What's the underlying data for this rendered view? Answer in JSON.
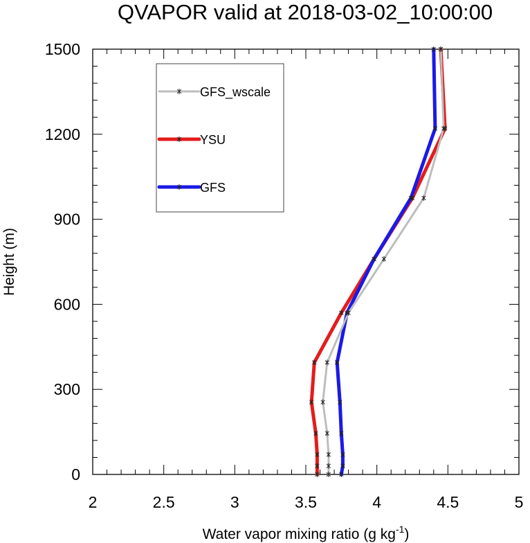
{
  "chart_data": {
    "type": "line",
    "title": "QVAPOR valid at 2018-03-02_10:00:00",
    "xlabel": "Water vapor mixing ratio (g kg",
    "xlabel_sup": "-1",
    "xlabel_end": ")",
    "ylabel": "Height (m)",
    "xlim": [
      2,
      5
    ],
    "ylim": [
      0,
      1500
    ],
    "xticks": [
      "2",
      "2.5",
      "3",
      "3.5",
      "4",
      "4.5",
      "5"
    ],
    "yticks": [
      "0",
      "300",
      "600",
      "900",
      "1200",
      "1500"
    ],
    "legend_position": "top-left",
    "series": [
      {
        "name": "GFS_wscale",
        "color": "#bdbdbd",
        "x": [
          3.66,
          3.66,
          3.66,
          3.65,
          3.62,
          3.65,
          3.8,
          4.05,
          4.33,
          4.47,
          4.45
        ],
        "y": [
          0,
          30,
          70,
          145,
          255,
          395,
          570,
          760,
          975,
          1220,
          1500
        ]
      },
      {
        "name": "YSU",
        "color": "#e51c1c",
        "x": [
          3.58,
          3.58,
          3.58,
          3.57,
          3.54,
          3.56,
          3.75,
          3.98,
          4.25,
          4.48,
          4.45
        ],
        "y": [
          0,
          30,
          70,
          145,
          255,
          395,
          570,
          760,
          975,
          1220,
          1500
        ]
      },
      {
        "name": "GFS",
        "color": "#1a1ae6",
        "x": [
          3.75,
          3.76,
          3.76,
          3.75,
          3.74,
          3.72,
          3.79,
          3.98,
          4.24,
          4.41,
          4.4
        ],
        "y": [
          0,
          30,
          70,
          145,
          255,
          395,
          570,
          760,
          975,
          1220,
          1500
        ]
      }
    ]
  }
}
